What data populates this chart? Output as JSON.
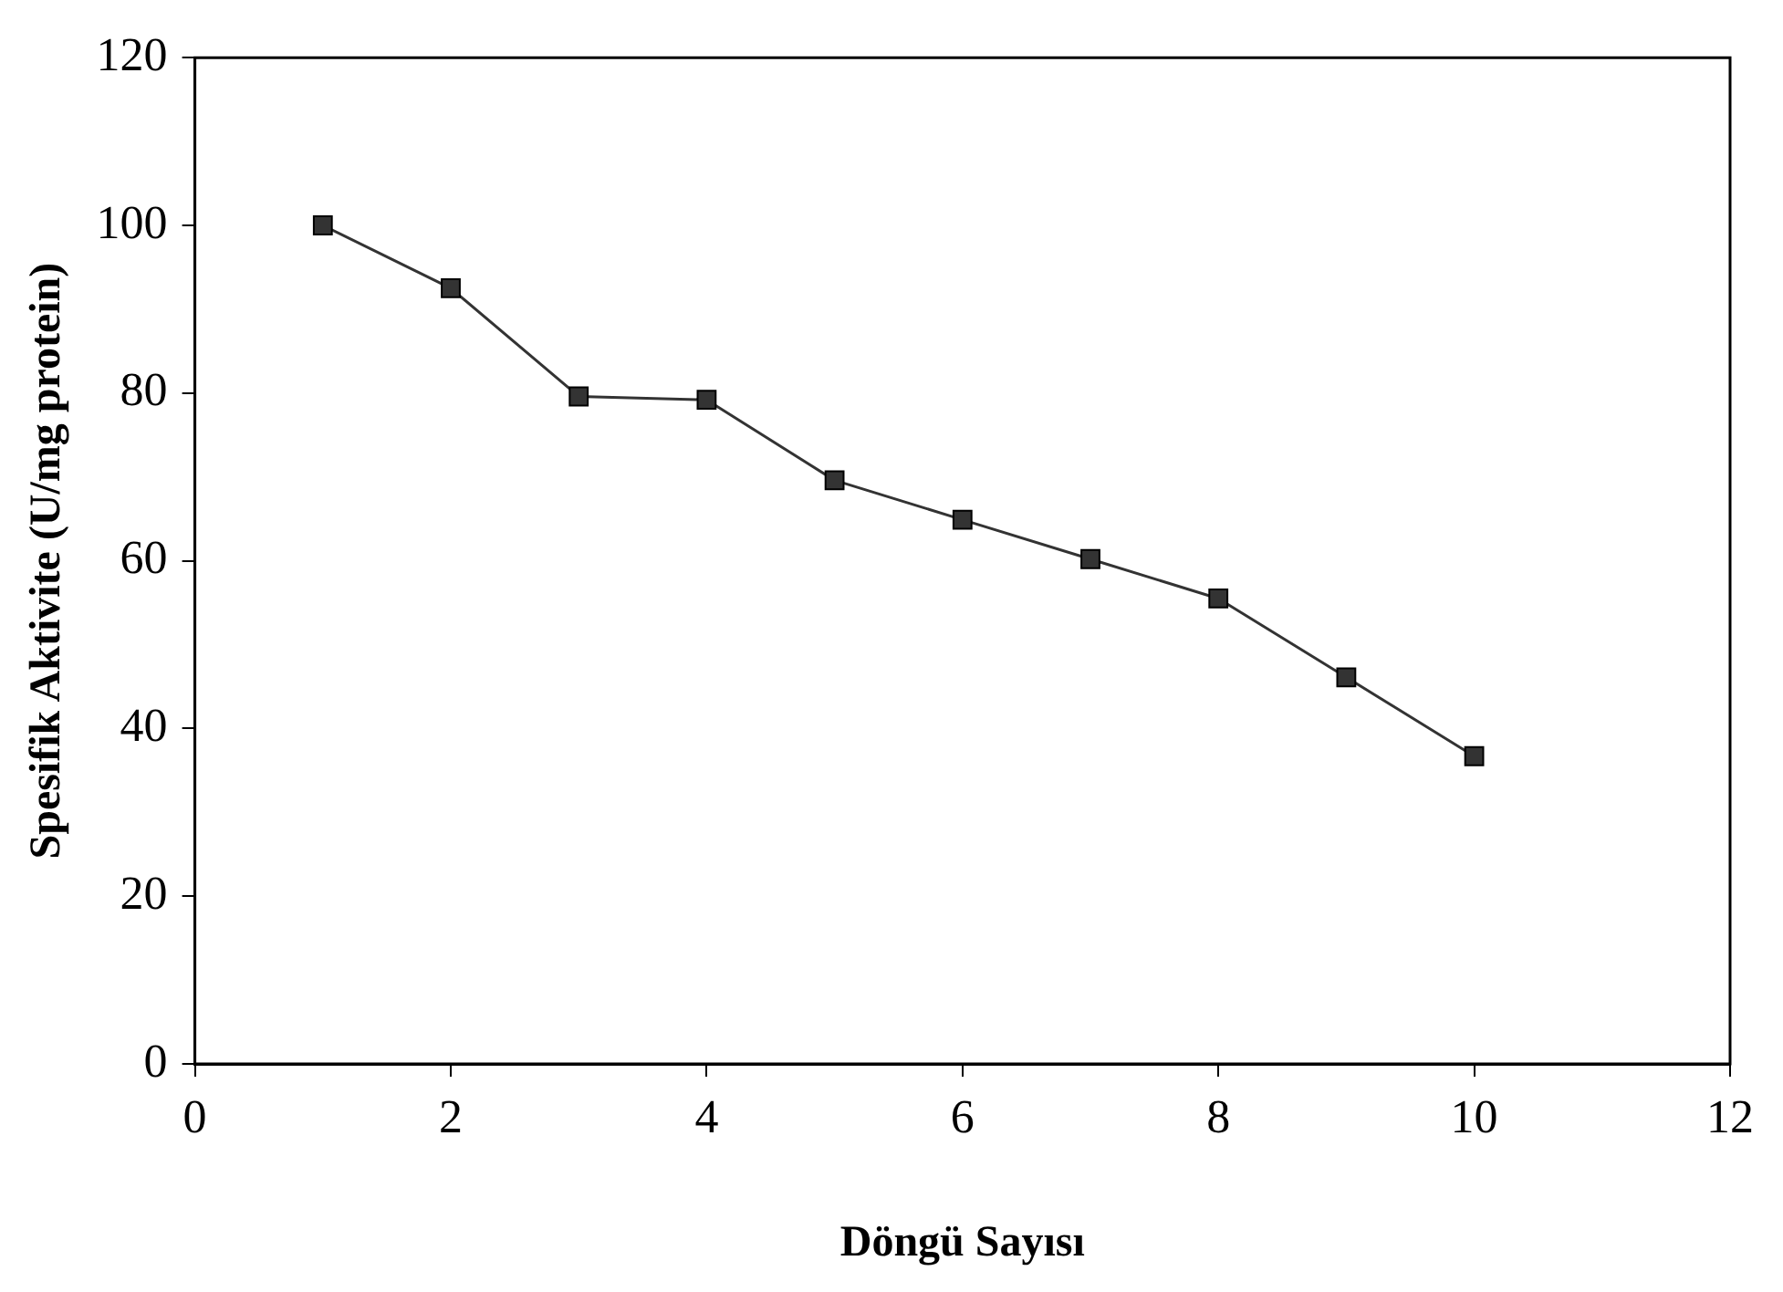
{
  "chart_data": {
    "type": "line",
    "xlabel": "Döngü Sayısı",
    "ylabel": "Spesifik Aktivite (U/mg protein)",
    "x": [
      1,
      2,
      3,
      4,
      5,
      6,
      7,
      8,
      9,
      10
    ],
    "series": [
      {
        "color": "#333333",
        "values": [
          100,
          92.5,
          79.6,
          79.2,
          69.6,
          64.9,
          60.2,
          55.5,
          46.1,
          36.7
        ]
      }
    ],
    "xlim": [
      0,
      12
    ],
    "xticks": [
      0,
      2,
      4,
      6,
      8,
      10,
      12
    ],
    "ylim": [
      0,
      120
    ],
    "yticks": [
      0,
      20,
      40,
      60,
      80,
      100,
      120
    ],
    "grid": false,
    "legend": false,
    "marker": "square",
    "line_style": "solid"
  }
}
